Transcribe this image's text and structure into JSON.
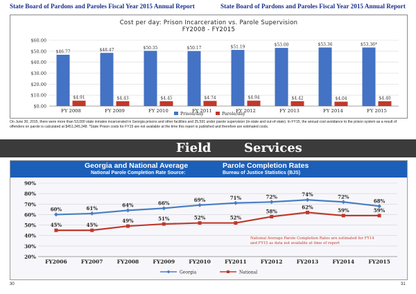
{
  "header": {
    "left_title": "State Board of Pardons and Paroles Fiscal Year 2015 Annual Report",
    "right_title": "State Board of Pardons and Paroles Fiscal Year 2015 Annual Report"
  },
  "colors": {
    "header_text": "#1b2f8c",
    "prison_bar": "#4472c4",
    "parole_bar": "#c0392b",
    "banner_bg": "#3b3b3b",
    "blue_header": "#1b5fb8",
    "georgia_line": "#4a7fc1",
    "national_line": "#c0392b",
    "note_red": "#c0392b"
  },
  "chart_data": [
    {
      "type": "bar",
      "title": "Cost per day: Prison Incarceration vs. Parole Supervision",
      "subtitle": "FY2008 - FY2015",
      "categories": [
        "FY 2008",
        "FY 2009",
        "FY 2010",
        "FY 2011",
        "FY 2012",
        "FY 2013",
        "FY 2014",
        "FY 2015"
      ],
      "series": [
        {
          "name": "Prison/day",
          "values": [
            46.77,
            48.47,
            50.35,
            50.17,
            51.19,
            53.0,
            53.36,
            53.36
          ],
          "labels": [
            "$46.77",
            "$48.47",
            "$50.35",
            "$50.17",
            "$51.19",
            "$53.00",
            "$53.36",
            "$53.36*"
          ]
        },
        {
          "name": "Parole/day",
          "values": [
            4.91,
            4.43,
            4.45,
            4.74,
            4.94,
            4.42,
            4.04,
            4.4
          ],
          "labels": [
            "$4.91",
            "$4.43",
            "$4.45",
            "$4.74",
            "$4.94",
            "$4.42",
            "$4.04",
            "$4.40"
          ]
        }
      ],
      "yticks": [
        "$0.00",
        "$10.00",
        "$20.00",
        "$30.00",
        "$40.00",
        "$50.00",
        "$60.00"
      ],
      "ylim": [
        0,
        60
      ],
      "legend": "bottom"
    },
    {
      "type": "line",
      "categories": [
        "FY2006",
        "FY2007",
        "FY2008",
        "FY2009",
        "FY2010",
        "FY2011",
        "FY2012",
        "FY2013",
        "FY2014",
        "FY2015"
      ],
      "series": [
        {
          "name": "Georgia",
          "values": [
            60,
            61,
            64,
            66,
            69,
            71,
            72,
            74,
            72,
            68
          ],
          "labels": [
            "60%",
            "61%",
            "64%",
            "66%",
            "69%",
            "71%",
            "72%",
            "74%",
            "72%",
            "68%"
          ]
        },
        {
          "name": "National",
          "values": [
            45,
            45,
            49,
            51,
            52,
            52,
            58,
            62,
            59,
            59
          ],
          "labels": [
            "45%",
            "45%",
            "49%",
            "51%",
            "52%",
            "52%",
            "58%",
            "62%",
            "59%",
            "59%"
          ]
        }
      ],
      "yticks": [
        "20%",
        "30%",
        "40%",
        "50%",
        "60%",
        "70%",
        "80%",
        "90%"
      ],
      "ylim": [
        20,
        90
      ],
      "legend": "bottom"
    }
  ],
  "note": "On June 30, 2015, there were more than 53,000 state inmates incarcerated in Georgia prisons and other facilities and 25,591 under parole supervision (in-state and out-of-state). In FY15, the annual cost avoidance to the prison system as a result of offenders on parole is calculated at $451,345,348. *State Prison costs for FY15 are not available at the time this report is published and therefore are estimated costs.",
  "banner": {
    "word1": "Field",
    "word2": "Services"
  },
  "parole_panel": {
    "title_left": "Georgia and National Average",
    "title_right": "Parole Completion Rates",
    "sub_left": "National Parole Completion Rate Source:",
    "sub_right": "Bureau of Justice Statistics (BJS)",
    "estimate_note": "National Average Parole Completion Rates are estimated for FY14 and FY15 as data not available at time of report"
  },
  "pages": {
    "left": "30",
    "right": "31"
  }
}
